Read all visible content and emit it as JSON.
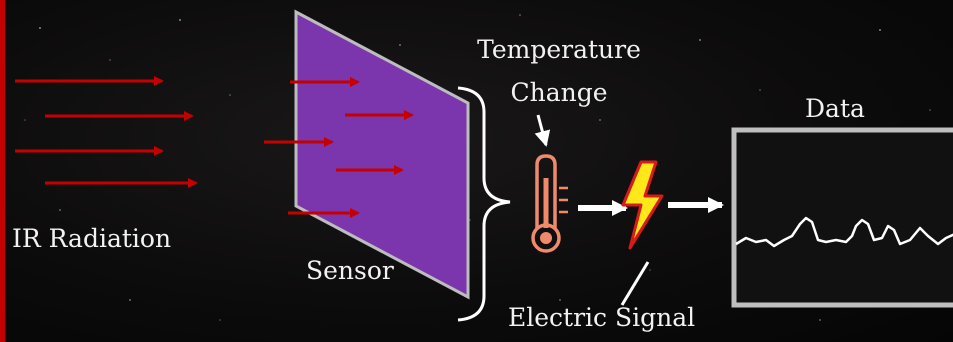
{
  "labels": {
    "ir_radiation": "IR Radiation",
    "sensor": "Sensor",
    "temperature_change_line1": "Temperature",
    "temperature_change_line2": "Change",
    "data": "Data",
    "electric_signal": "Electric Signal"
  },
  "icons": {
    "thermometer": "thermometer-icon",
    "lightning": "lightning-bolt-icon"
  },
  "colors": {
    "background": "#0d0c0c",
    "arrow_red": "#c40000",
    "sensor_fill": "#7b35ad",
    "sensor_edge": "#bdbdbd",
    "text": "#f2f2f2",
    "thermometer": "#f08a6a",
    "bolt_fill": "#ffe81a",
    "bolt_edge": "#d81a1a",
    "white": "#ffffff",
    "monitor_frame": "#bfbfbf",
    "monitor_screen": "#111111"
  }
}
